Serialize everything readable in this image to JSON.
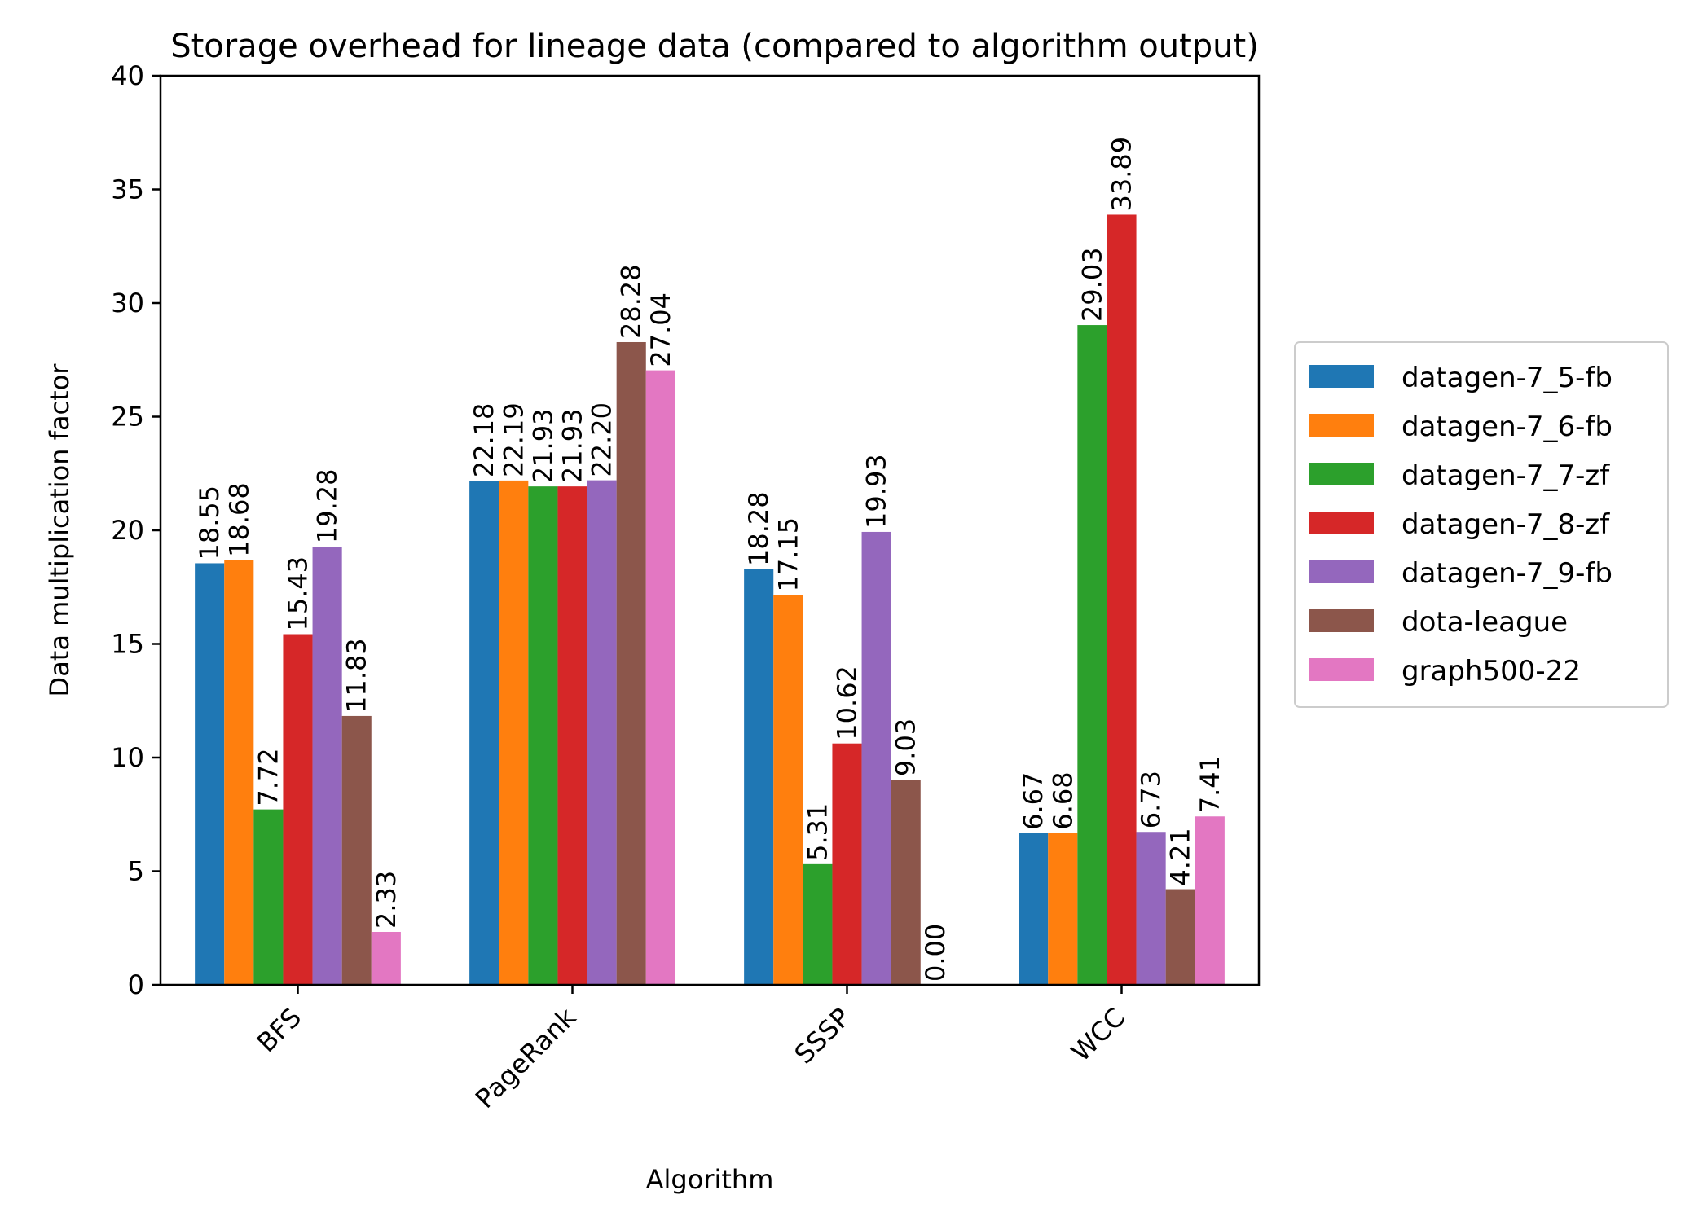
{
  "chart_data": {
    "type": "bar",
    "title": "Storage overhead for lineage data (compared to algorithm output)",
    "xlabel": "Algorithm",
    "ylabel": "Data multiplication factor",
    "ylim": [
      0,
      40
    ],
    "yticks": [
      0,
      5,
      10,
      15,
      20,
      25,
      30,
      35,
      40
    ],
    "categories": [
      "BFS",
      "PageRank",
      "SSSP",
      "WCC"
    ],
    "grid": false,
    "legend_position": "right",
    "series": [
      {
        "name": "datagen-7_5-fb",
        "color": "#1f77b4",
        "values": [
          18.55,
          22.18,
          18.28,
          6.67
        ],
        "labels": [
          "18.55",
          "22.18",
          "18.28",
          "6.67"
        ]
      },
      {
        "name": "datagen-7_6-fb",
        "color": "#ff7f0e",
        "values": [
          18.68,
          22.19,
          17.15,
          6.68
        ],
        "labels": [
          "18.68",
          "22.19",
          "17.15",
          "6.68"
        ]
      },
      {
        "name": "datagen-7_7-zf",
        "color": "#2ca02c",
        "values": [
          7.72,
          21.93,
          5.31,
          29.03
        ],
        "labels": [
          "7.72",
          "21.93",
          "5.31",
          "29.03"
        ]
      },
      {
        "name": "datagen-7_8-zf",
        "color": "#d62728",
        "values": [
          15.43,
          21.93,
          10.62,
          33.89
        ],
        "labels": [
          "15.43",
          "21.93",
          "10.62",
          "33.89"
        ]
      },
      {
        "name": "datagen-7_9-fb",
        "color": "#9467bd",
        "values": [
          19.28,
          22.2,
          19.93,
          6.73
        ],
        "labels": [
          "19.28",
          "22.20",
          "19.93",
          "6.73"
        ]
      },
      {
        "name": "dota-league",
        "color": "#8c564b",
        "values": [
          11.83,
          28.28,
          9.03,
          4.21
        ],
        "labels": [
          "11.83",
          "28.28",
          "9.03",
          "4.21"
        ]
      },
      {
        "name": "graph500-22",
        "color": "#e377c2",
        "values": [
          2.33,
          27.04,
          0.0,
          7.41
        ],
        "labels": [
          "2.33",
          "27.04",
          "0.00",
          "7.41"
        ]
      }
    ]
  }
}
